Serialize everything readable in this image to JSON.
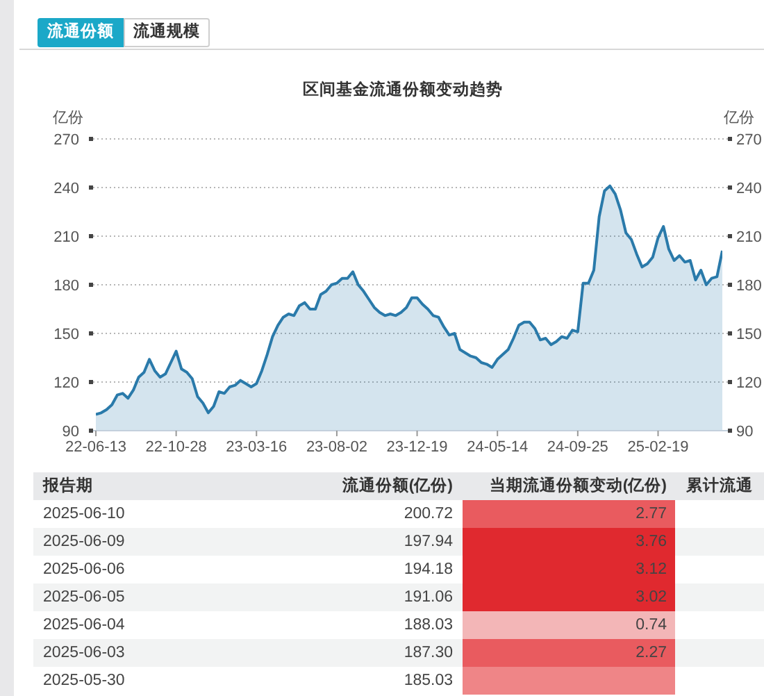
{
  "chart_data": [
    {
      "type": "area",
      "title": "区间基金流通份额变动趋势",
      "ylabel": "亿份",
      "y2label": "亿份",
      "annotations": [
        "流通份额",
        "流通规模"
      ],
      "categories": [
        "22-06-13",
        null,
        null,
        null,
        null,
        null,
        null,
        null,
        null,
        null,
        null,
        null,
        null,
        null,
        null,
        "22-10-28",
        null,
        null,
        null,
        null,
        null,
        null,
        null,
        null,
        null,
        null,
        null,
        null,
        null,
        null,
        "23-03-16",
        null,
        null,
        null,
        null,
        null,
        null,
        null,
        null,
        null,
        null,
        null,
        null,
        null,
        null,
        "23-08-02",
        null,
        null,
        null,
        null,
        null,
        null,
        null,
        null,
        null,
        null,
        null,
        null,
        null,
        null,
        "23-12-19",
        null,
        null,
        null,
        null,
        null,
        null,
        null,
        null,
        null,
        null,
        null,
        null,
        null,
        null,
        "24-05-14",
        null,
        null,
        null,
        null,
        null,
        null,
        null,
        null,
        null,
        null,
        null,
        null,
        null,
        null,
        "24-09-25",
        null,
        null,
        null,
        null,
        null,
        null,
        null,
        null,
        null,
        null,
        null,
        null,
        null,
        null,
        "25-02-19",
        null,
        null,
        null,
        null,
        null,
        null,
        null,
        null,
        null,
        null,
        null,
        null
      ],
      "values": [
        100,
        101,
        103,
        106,
        112,
        113,
        110,
        115,
        123,
        126,
        134,
        127,
        123,
        125,
        132,
        139,
        128,
        126,
        122,
        111,
        107,
        101,
        105,
        114,
        113,
        117,
        118,
        121,
        119,
        117,
        119,
        127,
        137,
        148,
        155,
        160,
        162,
        161,
        167,
        169,
        165,
        165,
        174,
        176,
        180,
        181,
        184,
        184,
        188,
        180,
        176,
        171,
        166,
        163,
        161,
        162,
        161,
        163,
        166,
        172,
        172,
        168,
        165,
        161,
        160,
        154,
        149,
        150,
        140,
        138,
        136,
        135,
        132,
        131,
        129,
        134,
        137,
        140,
        147,
        155,
        157,
        157,
        153,
        146,
        147,
        143,
        145,
        148,
        147,
        152,
        151,
        181,
        181,
        189,
        222,
        238,
        241,
        236,
        226,
        212,
        208,
        199,
        191,
        193,
        197,
        209,
        216,
        202,
        195,
        198,
        194,
        195,
        183,
        189,
        180,
        184,
        185,
        201
      ],
      "color": "#2a7aaa",
      "ylim": [
        90,
        270
      ],
      "yticks": [
        90,
        120,
        150,
        180,
        210,
        240,
        270
      ],
      "y2lim": [
        90,
        270
      ],
      "y2ticks": [
        90,
        120,
        150,
        180,
        210,
        240,
        270
      ],
      "grid": "y"
    },
    {
      "type": "other",
      "xlabel": "报告期",
      "annotations": [
        "累计流通"
      ],
      "categories": [
        "2025-06-10",
        "2025-06-09",
        "2025-06-06",
        "2025-06-05",
        "2025-06-04",
        "2025-06-03",
        "2025-05-30"
      ],
      "series": [
        {
          "name": "流通份额(亿份)",
          "values": [
            200.72,
            197.94,
            194.18,
            191.06,
            188.03,
            187.3,
            185.03
          ],
          "value_labels": [
            "200.72",
            "197.94",
            "194.18",
            "191.06",
            "188.03",
            "187.30",
            "185.03"
          ]
        },
        {
          "name": "当期流通份额变动(亿份)",
          "values": [
            2.77,
            3.76,
            3.12,
            3.02,
            0.74,
            2.27,
            null
          ],
          "value_labels": [
            "2.77",
            "3.76",
            "3.12",
            "3.02",
            "0.74",
            "2.27",
            null
          ],
          "colors": [
            "#e95b5f",
            "#e0292f",
            "#e0292f",
            "#e0292f",
            "#f3b6b7",
            "#e95b5f",
            "#ef8587"
          ]
        }
      ]
    }
  ]
}
